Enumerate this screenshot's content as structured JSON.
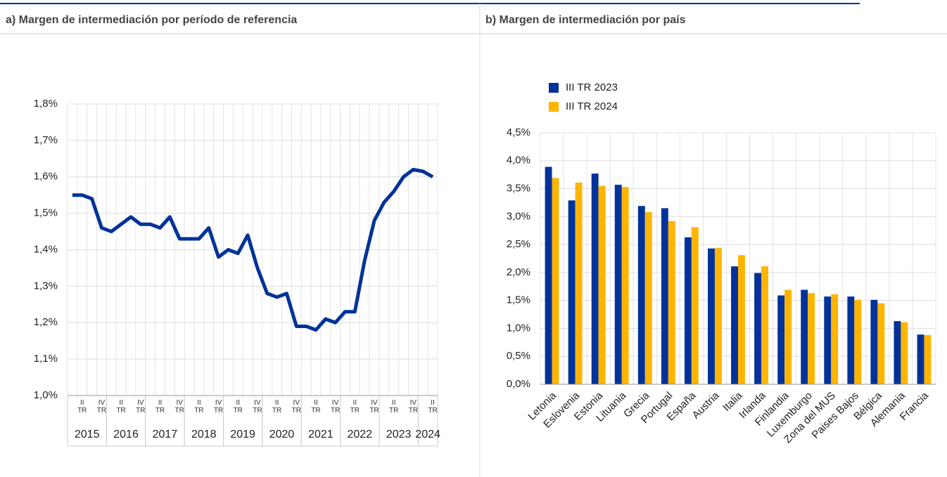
{
  "chart_data": [
    {
      "type": "line",
      "title": "a) Margen de intermediación por período de referencia",
      "categories": [
        null,
        "II TR",
        null,
        "IV TR",
        null,
        "II TR",
        null,
        "IV TR",
        null,
        "II TR",
        null,
        "IV TR",
        null,
        "II TR",
        null,
        "IV TR",
        null,
        "II TR",
        null,
        "IV TR",
        null,
        "II TR",
        null,
        "IV TR",
        null,
        "II TR",
        null,
        "IV TR",
        null,
        "II TR",
        null,
        "IV TR",
        null,
        "II TR",
        null,
        "IV TR",
        null,
        "II TR"
      ],
      "x_groups": [
        "2015",
        "2016",
        "2017",
        "2018",
        "2019",
        "2020",
        "2021",
        "2022",
        "2023",
        "2024"
      ],
      "values": [
        1.55,
        1.55,
        1.54,
        1.46,
        1.45,
        1.47,
        1.49,
        1.47,
        1.47,
        1.46,
        1.49,
        1.43,
        1.43,
        1.43,
        1.46,
        1.38,
        1.4,
        1.39,
        1.44,
        1.35,
        1.28,
        1.27,
        1.28,
        1.19,
        1.19,
        1.18,
        1.21,
        1.2,
        1.23,
        1.23,
        1.37,
        1.48,
        1.53,
        1.56,
        1.6,
        1.62,
        1.615,
        1.6
      ],
      "color": "#003299",
      "ylim": [
        1.0,
        1.8
      ],
      "yticks": [
        {
          "value": 1.0,
          "label": "1,0%"
        },
        {
          "value": 1.1,
          "label": "1,1%"
        },
        {
          "value": 1.2,
          "label": "1,2%"
        },
        {
          "value": 1.3,
          "label": "1,3%"
        },
        {
          "value": 1.4,
          "label": "1,4%"
        },
        {
          "value": 1.5,
          "label": "1,5%"
        },
        {
          "value": 1.6,
          "label": "1,6%"
        },
        {
          "value": 1.7,
          "label": "1,7%"
        },
        {
          "value": 1.8,
          "label": "1,8%"
        }
      ],
      "grid": true
    },
    {
      "type": "bar",
      "title": "b) Margen de intermediación por país",
      "categories": [
        "Letonia",
        "Eslovenia",
        "Estonia",
        "Lituania",
        "Grecia",
        "Portugal",
        "España",
        "Austria",
        "Italia",
        "Irlanda",
        "Finlandia",
        "Luxemburgo",
        "Zona del MUS",
        "Paises Bajos",
        "Bélgica",
        "Alemania",
        "Francia"
      ],
      "series": [
        {
          "name": "III TR 2023",
          "color": "#003299",
          "values": [
            3.89,
            3.29,
            3.77,
            3.57,
            3.19,
            3.15,
            2.63,
            2.43,
            2.11,
            1.99,
            1.59,
            1.69,
            1.57,
            1.57,
            1.51,
            1.13,
            0.89
          ]
        },
        {
          "name": "III TR 2024",
          "color": "#ffb400",
          "values": [
            3.69,
            3.61,
            3.55,
            3.53,
            3.08,
            2.92,
            2.81,
            2.44,
            2.31,
            2.11,
            1.69,
            1.63,
            1.61,
            1.51,
            1.45,
            1.11,
            0.88
          ]
        }
      ],
      "ylim": [
        0,
        4.5
      ],
      "yticks": [
        {
          "value": 0,
          "label": "0,0%"
        },
        {
          "value": 0.5,
          "label": "0,5%"
        },
        {
          "value": 1.0,
          "label": "1,0%"
        },
        {
          "value": 1.5,
          "label": "1,5%"
        },
        {
          "value": 2.0,
          "label": "2,0%"
        },
        {
          "value": 2.5,
          "label": "2,5%"
        },
        {
          "value": 3.0,
          "label": "3,0%"
        },
        {
          "value": 3.5,
          "label": "3,5%"
        },
        {
          "value": 4.0,
          "label": "4,0%"
        },
        {
          "value": 4.5,
          "label": "4,5%"
        }
      ],
      "grid": true,
      "legend": "top-left"
    }
  ]
}
